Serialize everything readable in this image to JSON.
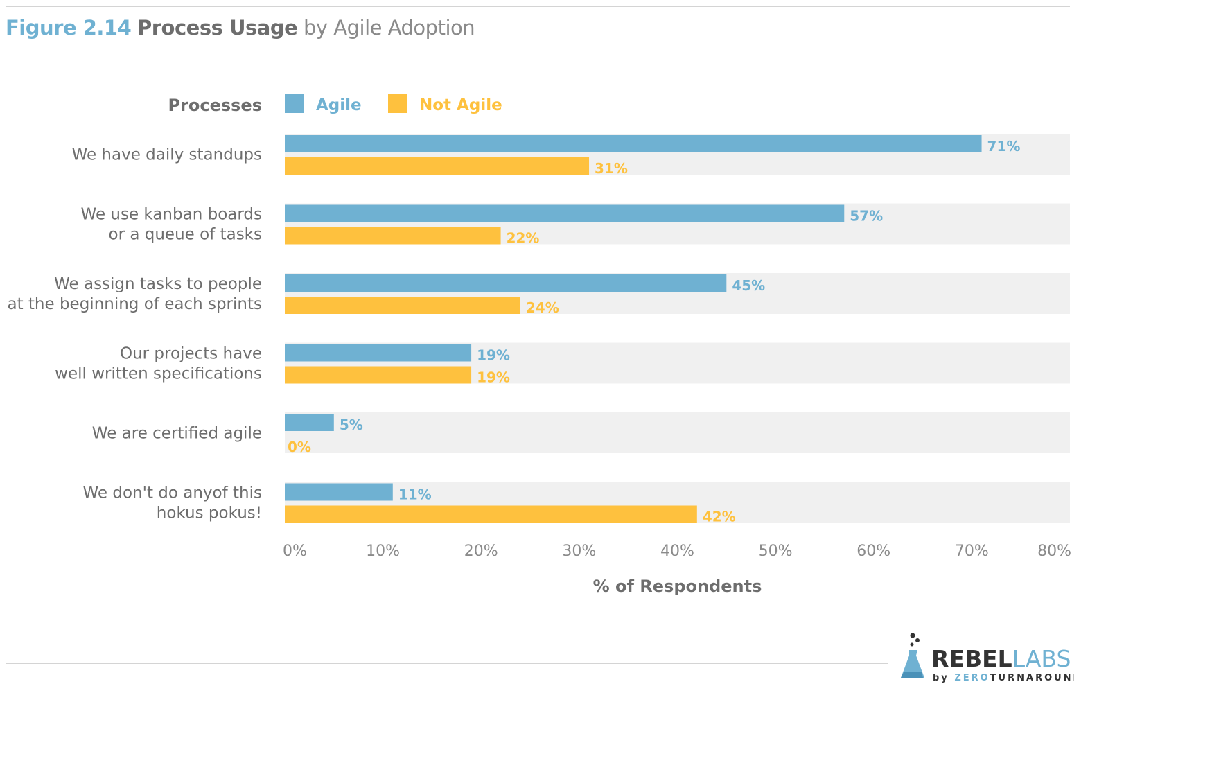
{
  "title": {
    "figure": "Figure 2.14",
    "main": "Process Usage",
    "sub": "by Agile Adoption"
  },
  "legend": {
    "header": "Processes",
    "agile": "Agile",
    "not_agile": "Not Agile"
  },
  "colors": {
    "agile": "#6fb1d2",
    "not_agile": "#fec13e",
    "band": "#f0f0f0",
    "label": "#6d6d6d",
    "axis": "#8a8a8a"
  },
  "logo": {
    "name_left": "REBEL",
    "name_right": "LABS",
    "tag_by": "by",
    "tag_zero": "ZERO",
    "tag_turn": "TURNAROUND"
  },
  "chart_data": {
    "type": "bar",
    "orientation": "horizontal",
    "categories": [
      [
        "We have daily standups"
      ],
      [
        "We use kanban boards",
        "or a queue of tasks"
      ],
      [
        "We assign tasks to people",
        "at the beginning of each sprints"
      ],
      [
        "Our projects have",
        "well written specifications"
      ],
      [
        "We are certified agile"
      ],
      [
        "We don't do anyof this",
        "hokus pokus!"
      ]
    ],
    "series": [
      {
        "name": "Agile",
        "values": [
          71,
          57,
          45,
          19,
          5,
          11
        ]
      },
      {
        "name": "Not Agile",
        "values": [
          31,
          22,
          24,
          19,
          0,
          42
        ]
      }
    ],
    "value_suffix": "%",
    "xlim": [
      0,
      80
    ],
    "xticks": [
      0,
      10,
      20,
      30,
      40,
      50,
      60,
      70,
      80
    ],
    "xtick_labels": [
      "0%",
      "10%",
      "20%",
      "30%",
      "40%",
      "50%",
      "60%",
      "70%",
      "80%"
    ],
    "xlabel": "% of Respondents",
    "ylabel": "",
    "legend_position": "top",
    "grid": false
  }
}
